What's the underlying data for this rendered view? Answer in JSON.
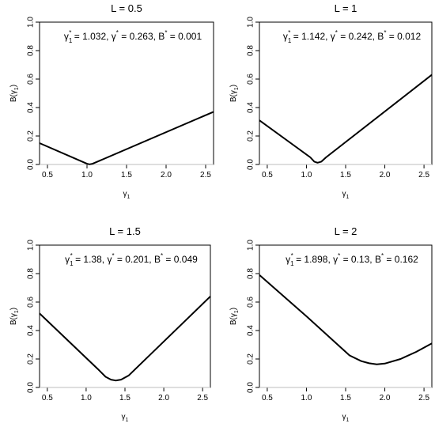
{
  "chart_data": [
    {
      "type": "line",
      "title": "L = 0.5",
      "xlabel": "γ",
      "xlabel_sub": "1",
      "ylabel": "B(γ",
      "ylabel_sub": "1",
      "ylabel_close": ")",
      "xlim": [
        0.4,
        2.6
      ],
      "ylim": [
        0,
        1
      ],
      "xticks": [
        0.5,
        1.0,
        1.5,
        2.0,
        2.5
      ],
      "xtick_labels": [
        "0.5",
        "1.0",
        "1.5",
        "2.0",
        "2.5"
      ],
      "yticks": [
        0,
        0.2,
        0.4,
        0.6,
        0.8,
        1.0
      ],
      "ytick_labels": [
        "0.0",
        "0.2",
        "0.4",
        "0.6",
        "0.8",
        "1.0"
      ],
      "reference_line_y": 0,
      "annotation": {
        "g1_sym": "γ",
        "g1_sub": "1",
        "g1_sup": "*",
        "g1_val": " = 1.032, ",
        "g_sym": "γ",
        "g_sup": "*",
        "g_val": " = 0.263, ",
        "b_sym": "B",
        "b_sup": "*",
        "b_val": " = 0.001"
      },
      "series": [
        {
          "x": [
            0.4,
            1.0,
            1.032,
            1.07,
            2.6
          ],
          "y": [
            0.15,
            0.005,
            0.001,
            0.005,
            0.37
          ]
        }
      ]
    },
    {
      "type": "line",
      "title": "L = 1",
      "xlabel": "γ",
      "xlabel_sub": "1",
      "ylabel": "B(γ",
      "ylabel_sub": "1",
      "ylabel_close": ")",
      "xlim": [
        0.4,
        2.6
      ],
      "ylim": [
        0,
        1
      ],
      "xticks": [
        0.5,
        1.0,
        1.5,
        2.0,
        2.5
      ],
      "xtick_labels": [
        "0.5",
        "1.0",
        "1.5",
        "2.0",
        "2.5"
      ],
      "yticks": [
        0,
        0.2,
        0.4,
        0.6,
        0.8,
        1.0
      ],
      "ytick_labels": [
        "0.0",
        "0.2",
        "0.4",
        "0.6",
        "0.8",
        "1.0"
      ],
      "reference_line_y": 0,
      "annotation": {
        "g1_sym": "γ",
        "g1_sub": "1",
        "g1_sup": "*",
        "g1_val": " = 1.142, ",
        "g_sym": "γ",
        "g_sup": "*",
        "g_val": " = 0.242, ",
        "b_sym": "B",
        "b_sup": "*",
        "b_val": " = 0.012"
      },
      "series": [
        {
          "x": [
            0.4,
            1.05,
            1.1,
            1.142,
            1.19,
            1.25,
            2.6
          ],
          "y": [
            0.31,
            0.05,
            0.02,
            0.012,
            0.02,
            0.05,
            0.63
          ]
        }
      ]
    },
    {
      "type": "line",
      "title": "L = 1.5",
      "xlabel": "γ",
      "xlabel_sub": "1",
      "ylabel": "B(γ",
      "ylabel_sub": "1",
      "ylabel_close": ")",
      "xlim": [
        0.4,
        2.6
      ],
      "ylim": [
        0,
        1
      ],
      "xticks": [
        0.5,
        1.0,
        1.5,
        2.0,
        2.5
      ],
      "xtick_labels": [
        "0.5",
        "1.0",
        "1.5",
        "2.0",
        "2.5"
      ],
      "yticks": [
        0,
        0.2,
        0.4,
        0.6,
        0.8,
        1.0
      ],
      "ytick_labels": [
        "0.0",
        "0.2",
        "0.4",
        "0.6",
        "0.8",
        "1.0"
      ],
      "reference_line_y": 0,
      "annotation": {
        "g1_sym": "γ",
        "g1_sub": "1",
        "g1_sup": "*",
        "g1_val": " = 1.38, ",
        "g_sym": "γ",
        "g_sup": "*",
        "g_val": " = 0.201, ",
        "b_sym": "B",
        "b_sup": "*",
        "b_val": " = 0.049"
      },
      "series": [
        {
          "x": [
            0.4,
            1.15,
            1.25,
            1.32,
            1.38,
            1.45,
            1.55,
            2.6
          ],
          "y": [
            0.52,
            0.13,
            0.075,
            0.055,
            0.049,
            0.055,
            0.085,
            0.64
          ]
        }
      ]
    },
    {
      "type": "line",
      "title": "L = 2",
      "xlabel": "γ",
      "xlabel_sub": "1",
      "ylabel": "B(γ",
      "ylabel_sub": "1",
      "ylabel_close": ")",
      "xlim": [
        0.4,
        2.6
      ],
      "ylim": [
        0,
        1
      ],
      "xticks": [
        0.5,
        1.0,
        1.5,
        2.0,
        2.5
      ],
      "xtick_labels": [
        "0.5",
        "1.0",
        "1.5",
        "2.0",
        "2.5"
      ],
      "yticks": [
        0,
        0.2,
        0.4,
        0.6,
        0.8,
        1.0
      ],
      "ytick_labels": [
        "0.0",
        "0.2",
        "0.4",
        "0.6",
        "0.8",
        "1.0"
      ],
      "reference_line_y": 0,
      "annotation": {
        "g1_sym": "γ",
        "g1_sub": "1",
        "g1_sup": "*",
        "g1_val": " = 1.898, ",
        "g_sym": "γ",
        "g_sup": "*",
        "g_val": " = 0.13, ",
        "b_sym": "B",
        "b_sup": "*",
        "b_val": " = 0.162"
      },
      "series": [
        {
          "x": [
            0.4,
            1.0,
            1.4,
            1.55,
            1.7,
            1.8,
            1.898,
            2.0,
            2.2,
            2.4,
            2.6
          ],
          "y": [
            0.79,
            0.5,
            0.3,
            0.225,
            0.185,
            0.17,
            0.162,
            0.168,
            0.2,
            0.25,
            0.31
          ]
        }
      ]
    }
  ]
}
